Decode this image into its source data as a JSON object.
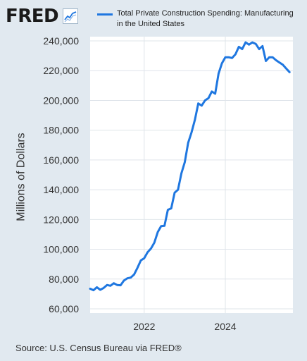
{
  "header": {
    "logo_text": "FRED",
    "logo_icon": "trend-line-icon"
  },
  "source": "Source: U.S. Census Bureau via FRED®",
  "colors": {
    "line": "#1f77e0",
    "plot_bg": "#ffffff",
    "page_bg": "#e1e9f0",
    "grid": "#dfe4ea"
  },
  "chart_data": {
    "type": "line",
    "title": "",
    "xlabel": "",
    "ylabel": "Millions of Dollars",
    "legend": "top",
    "grid": true,
    "ylim": [
      60000,
      240000
    ],
    "yticks": [
      60000,
      80000,
      100000,
      120000,
      140000,
      160000,
      180000,
      200000,
      220000,
      240000
    ],
    "ytick_labels": [
      "60,000",
      "80,000",
      "100,000",
      "120,000",
      "140,000",
      "160,000",
      "180,000",
      "200,000",
      "220,000",
      "240,000"
    ],
    "xlim": [
      "2020-09",
      "2025-09"
    ],
    "xticks": [
      "2022-01",
      "2024-01"
    ],
    "xtick_labels": [
      "2022",
      "2024"
    ],
    "series": [
      {
        "name": "Total Private Construction Spending: Manufacturing in the United States",
        "x": [
          "2020-09",
          "2020-10",
          "2020-11",
          "2020-12",
          "2021-01",
          "2021-02",
          "2021-03",
          "2021-04",
          "2021-05",
          "2021-06",
          "2021-07",
          "2021-08",
          "2021-09",
          "2021-10",
          "2021-11",
          "2021-12",
          "2022-01",
          "2022-02",
          "2022-03",
          "2022-04",
          "2022-05",
          "2022-06",
          "2022-07",
          "2022-08",
          "2022-09",
          "2022-10",
          "2022-11",
          "2022-12",
          "2023-01",
          "2023-02",
          "2023-03",
          "2023-04",
          "2023-05",
          "2023-06",
          "2023-07",
          "2023-08",
          "2023-09",
          "2023-10",
          "2023-11",
          "2023-12",
          "2024-01",
          "2024-02",
          "2024-03",
          "2024-04",
          "2024-05",
          "2024-06",
          "2024-07",
          "2024-08",
          "2024-09",
          "2024-10",
          "2024-11",
          "2024-12",
          "2025-01",
          "2025-02",
          "2025-03",
          "2025-04",
          "2025-05",
          "2025-06",
          "2025-07",
          "2025-08"
        ],
        "values": [
          73500,
          72500,
          74500,
          72800,
          74000,
          76000,
          75500,
          77200,
          76000,
          75800,
          79000,
          80500,
          81000,
          83000,
          87500,
          92500,
          94000,
          98000,
          100500,
          104500,
          111500,
          115500,
          115800,
          126500,
          127500,
          138000,
          140000,
          151000,
          158500,
          171500,
          178500,
          187000,
          198000,
          196500,
          200000,
          201500,
          206000,
          204500,
          218000,
          225000,
          229000,
          229000,
          228500,
          231000,
          236000,
          234500,
          239000,
          237500,
          239000,
          238000,
          234500,
          236500,
          226500,
          229000,
          229000,
          227000,
          225500,
          224000,
          221500,
          219000
        ]
      }
    ]
  }
}
